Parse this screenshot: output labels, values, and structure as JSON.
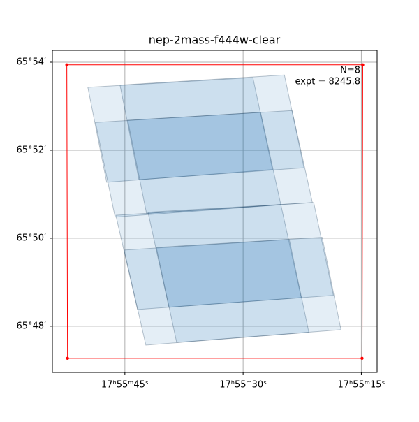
{
  "chart_data": {
    "type": "footprint",
    "title": "nep-2mass-f444w-clear",
    "annotations": [
      "N=8",
      "expt = 8245.8"
    ],
    "xlim": [
      54.2,
      13.0
    ],
    "ylim": [
      46.95,
      54.27
    ],
    "xticks": [
      {
        "value": 45,
        "label": "17ʰ55ᵐ45ˢ"
      },
      {
        "value": 30,
        "label": "17ʰ55ᵐ30ˢ"
      },
      {
        "value": 15,
        "label": "17ʰ55ᵐ15ˢ"
      }
    ],
    "yticks": [
      {
        "value": 48,
        "label": "65°48′"
      },
      {
        "value": 50,
        "label": "65°50′"
      },
      {
        "value": 52,
        "label": "65°52′"
      },
      {
        "value": 54,
        "label": "65°54′"
      }
    ],
    "grid": true,
    "color": "#1f77b4",
    "footprints": [
      {
        "x": [
          49.7,
          28.76,
          26.27,
          47.31
        ],
        "y": [
          53.43,
          53.65,
          51.56,
          51.27
        ]
      },
      {
        "x": [
          45.62,
          24.76,
          22.28,
          43.22
        ],
        "y": [
          53.48,
          53.71,
          51.6,
          51.33
        ]
      },
      {
        "x": [
          48.73,
          27.78,
          25.21,
          46.24
        ],
        "y": [
          52.63,
          52.86,
          50.76,
          50.48
        ]
      },
      {
        "x": [
          44.64,
          23.79,
          21.21,
          42.25
        ],
        "y": [
          52.68,
          52.9,
          50.81,
          50.56
        ]
      },
      {
        "x": [
          46.15,
          25.21,
          22.63,
          43.4
        ],
        "y": [
          50.52,
          50.76,
          48.65,
          48.38
        ]
      },
      {
        "x": [
          42.07,
          21.04,
          18.55,
          39.41
        ],
        "y": [
          50.59,
          50.81,
          48.7,
          48.43
        ]
      },
      {
        "x": [
          45.09,
          24.14,
          21.66,
          42.34
        ],
        "y": [
          49.73,
          49.97,
          47.86,
          47.57
        ]
      },
      {
        "x": [
          41.01,
          19.97,
          17.58,
          38.43
        ],
        "y": [
          49.79,
          50.02,
          47.92,
          47.63
        ]
      }
    ],
    "region": {
      "color": "red",
      "x": [
        52.37,
        14.82,
        14.91,
        52.28
      ],
      "y": [
        53.94,
        53.94,
        47.27,
        47.27
      ]
    }
  }
}
